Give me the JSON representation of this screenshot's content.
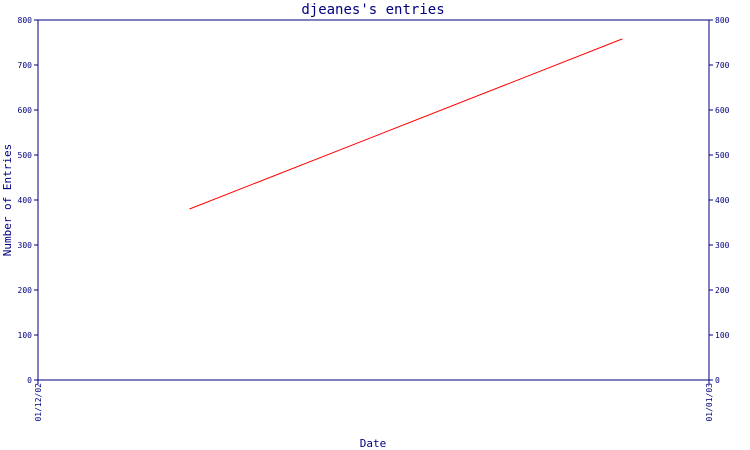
{
  "chart_data": {
    "type": "line",
    "title": "djeanes's entries",
    "xlabel": "Date",
    "ylabel": "Number of Entries",
    "x_ticks": [
      "01/12/02",
      "01/01/03"
    ],
    "y_ticks": [
      0,
      100,
      200,
      300,
      400,
      500,
      600,
      700,
      800
    ],
    "ylim": [
      0,
      800
    ],
    "series": [
      {
        "points": [
          {
            "x": "2002-12-08",
            "y": 380
          },
          {
            "x": "2002-12-28",
            "y": 758
          }
        ]
      }
    ],
    "grid": false,
    "colors": {
      "axis": "#000080",
      "line": "#ff0000",
      "background": "#ffffff"
    }
  }
}
